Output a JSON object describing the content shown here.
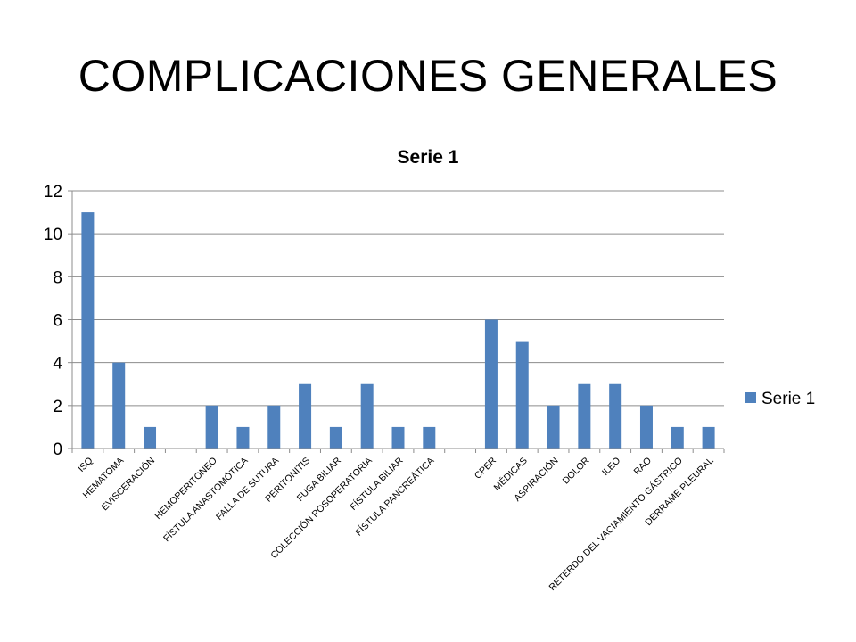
{
  "slide": {
    "title": "COMPLICACIONES GENERALES"
  },
  "chart_data": {
    "type": "bar",
    "title": "Serie 1",
    "xlabel": "",
    "ylabel": "",
    "ylim": [
      0,
      12
    ],
    "yticks": [
      0,
      2,
      4,
      6,
      8,
      10,
      12
    ],
    "grid": true,
    "legend_position": "right",
    "bar_color": "#4F81BD",
    "categories": [
      "ISQ",
      "HEMATOMA",
      "EVISCERACIÓN",
      "",
      "HEMOPERITONEO",
      "FÍSTULA ANASTOMÓTICA",
      "FALLA DE SUTURA",
      "PERITONITIS",
      "FUGA BILIAR",
      "COLECCIÓN POSOPERATORIA",
      "FÍSTULA BILIAR",
      "FÍSTULA PANCREÁTICA",
      "",
      "CPER",
      "MÉDICAS",
      "ASPIRACIÓN",
      "DOLOR",
      "ILEO",
      "RAO",
      "RETERDO DEL VACIAMIENTO GÁSTRICO",
      "DERRAME PLEURAL"
    ],
    "series": [
      {
        "name": "Serie 1",
        "values": [
          11,
          4,
          1,
          null,
          2,
          1,
          2,
          3,
          1,
          3,
          1,
          1,
          null,
          6,
          5,
          2,
          3,
          3,
          2,
          1,
          1
        ]
      }
    ]
  }
}
